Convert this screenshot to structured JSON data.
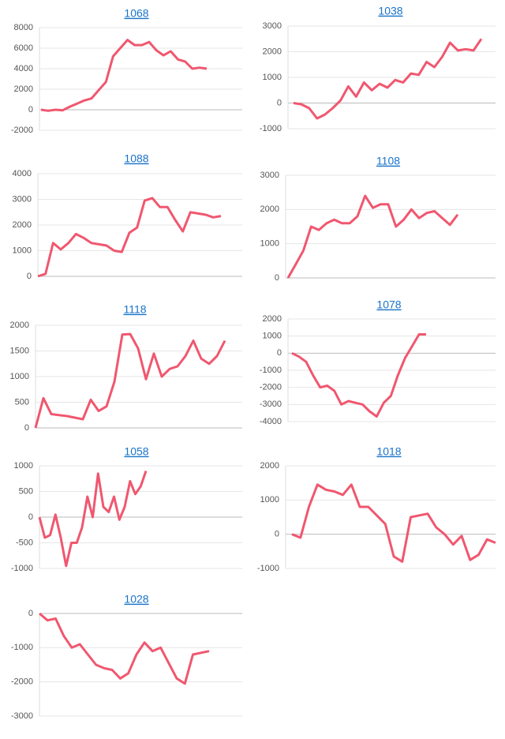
{
  "chart_data": [
    {
      "type": "line",
      "title": "1068",
      "color": "#f0576f",
      "ylim": [
        -2000,
        8000
      ],
      "yticks": [
        -2000,
        0,
        2000,
        4000,
        6000,
        8000
      ],
      "grid": true,
      "values": [
        0,
        -100,
        0,
        -50,
        300,
        600,
        900,
        1100,
        1900,
        2700,
        5200,
        6000,
        6800,
        6300,
        6300,
        6600,
        5800,
        5300,
        5700,
        4900,
        4700,
        4000,
        4100,
        4000
      ]
    },
    {
      "type": "line",
      "title": "1038",
      "color": "#f0576f",
      "ylim": [
        -1000,
        3000
      ],
      "yticks": [
        -1000,
        0,
        1000,
        2000,
        3000
      ],
      "grid": true,
      "values": [
        0,
        -50,
        -200,
        -600,
        -450,
        -200,
        100,
        650,
        250,
        800,
        500,
        750,
        600,
        900,
        800,
        1150,
        1100,
        1600,
        1400,
        1800,
        2350,
        2050,
        2100,
        2050,
        2500
      ]
    },
    {
      "type": "line",
      "title": "1088",
      "color": "#f0576f",
      "ylim": [
        0,
        4000
      ],
      "yticks": [
        0,
        1000,
        2000,
        3000,
        4000
      ],
      "grid": true,
      "values": [
        0,
        100,
        1300,
        1050,
        1300,
        1650,
        1500,
        1300,
        1250,
        1200,
        1000,
        950,
        1700,
        1900,
        2950,
        3050,
        2700,
        2700,
        2200,
        1750,
        2500,
        2450,
        2400,
        2300,
        2350
      ]
    },
    {
      "type": "line",
      "title": "1108",
      "color": "#f0576f",
      "ylim": [
        0,
        3000
      ],
      "yticks": [
        0,
        1000,
        2000,
        3000
      ],
      "grid": true,
      "values": [
        0,
        400,
        800,
        1500,
        1400,
        1600,
        1700,
        1600,
        1600,
        1800,
        2400,
        2050,
        2150,
        2150,
        1500,
        1700,
        2000,
        1750,
        1900,
        1950,
        1750,
        1550,
        1850
      ]
    },
    {
      "type": "line",
      "title": "1118",
      "color": "#f0576f",
      "ylim": [
        0,
        2000
      ],
      "yticks": [
        0,
        500,
        1000,
        1500,
        2000
      ],
      "grid": true,
      "values": [
        0,
        580,
        270,
        250,
        230,
        200,
        170,
        550,
        330,
        420,
        900,
        1820,
        1830,
        1550,
        950,
        1450,
        1000,
        1150,
        1200,
        1400,
        1700,
        1350,
        1250,
        1400,
        1700
      ]
    },
    {
      "type": "line",
      "title": "1078",
      "color": "#f0576f",
      "ylim": [
        -4000,
        2000
      ],
      "yticks": [
        -4000,
        -3000,
        -2000,
        -1000,
        0,
        1000,
        2000
      ],
      "grid": true,
      "values": [
        0,
        -200,
        -500,
        -1300,
        -2000,
        -1900,
        -2200,
        -3000,
        -2800,
        -2900,
        -3000,
        -3400,
        -3700,
        -2900,
        -2500,
        -1300,
        -300,
        400,
        1100,
        1100
      ]
    },
    {
      "type": "line",
      "title": "1058",
      "color": "#f0576f",
      "ylim": [
        -1000,
        1000
      ],
      "yticks": [
        -1000,
        -500,
        0,
        500,
        1000
      ],
      "grid": true,
      "values": [
        0,
        -400,
        -350,
        50,
        -400,
        -950,
        -500,
        -500,
        -200,
        400,
        0,
        850,
        200,
        100,
        400,
        -50,
        200,
        700,
        450,
        600,
        900
      ]
    },
    {
      "type": "line",
      "title": "1018",
      "color": "#f0576f",
      "ylim": [
        -1000,
        2000
      ],
      "yticks": [
        -1000,
        0,
        1000,
        2000
      ],
      "grid": true,
      "values": [
        0,
        -100,
        800,
        1450,
        1300,
        1250,
        1150,
        1450,
        800,
        800,
        550,
        300,
        -650,
        -800,
        500,
        550,
        600,
        200,
        0,
        -300,
        -50,
        -750,
        -600,
        -150,
        -250
      ]
    },
    {
      "type": "line",
      "title": "1028",
      "color": "#f0576f",
      "ylim": [
        -3000,
        0
      ],
      "yticks": [
        -3000,
        -2000,
        -1000,
        0
      ],
      "grid": true,
      "values": [
        0,
        -200,
        -150,
        -650,
        -1000,
        -900,
        -1200,
        -1500,
        -1600,
        -1650,
        -1900,
        -1750,
        -1200,
        -850,
        -1100,
        -1000,
        -1450,
        -1900,
        -2050,
        -1200,
        -1150,
        -1100
      ]
    }
  ]
}
